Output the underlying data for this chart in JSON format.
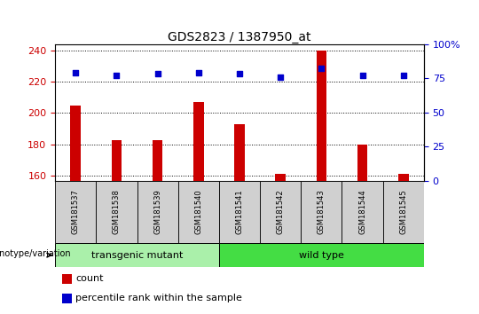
{
  "title": "GDS2823 / 1387950_at",
  "samples": [
    "GSM181537",
    "GSM181538",
    "GSM181539",
    "GSM181540",
    "GSM181541",
    "GSM181542",
    "GSM181543",
    "GSM181544",
    "GSM181545"
  ],
  "counts": [
    205,
    183,
    183,
    207,
    193,
    161,
    240,
    180,
    161
  ],
  "percentiles": [
    79,
    77,
    78,
    79,
    78,
    76,
    82,
    77,
    77
  ],
  "ylim_left": [
    157,
    244
  ],
  "ylim_right": [
    0,
    100
  ],
  "yticks_left": [
    160,
    180,
    200,
    220,
    240
  ],
  "yticks_right": [
    0,
    25,
    50,
    75,
    100
  ],
  "bar_color": "#cc0000",
  "dot_color": "#0000cc",
  "grid_color": "#000000",
  "transgenic_color": "#aaf0aa",
  "wildtype_color": "#44dd44",
  "n_transgenic": 4,
  "n_wildtype": 5,
  "label_transgenic": "transgenic mutant",
  "label_wildtype": "wild type",
  "label_genotype": "genotype/variation",
  "legend_count": "count",
  "legend_percentile": "percentile rank within the sample",
  "tick_label_color_left": "#cc0000",
  "tick_label_color_right": "#0000cc",
  "title_fontsize": 10,
  "bar_width": 0.25,
  "dot_size": 20,
  "sample_label_fontsize": 6,
  "geno_fontsize": 8,
  "legend_fontsize": 8
}
